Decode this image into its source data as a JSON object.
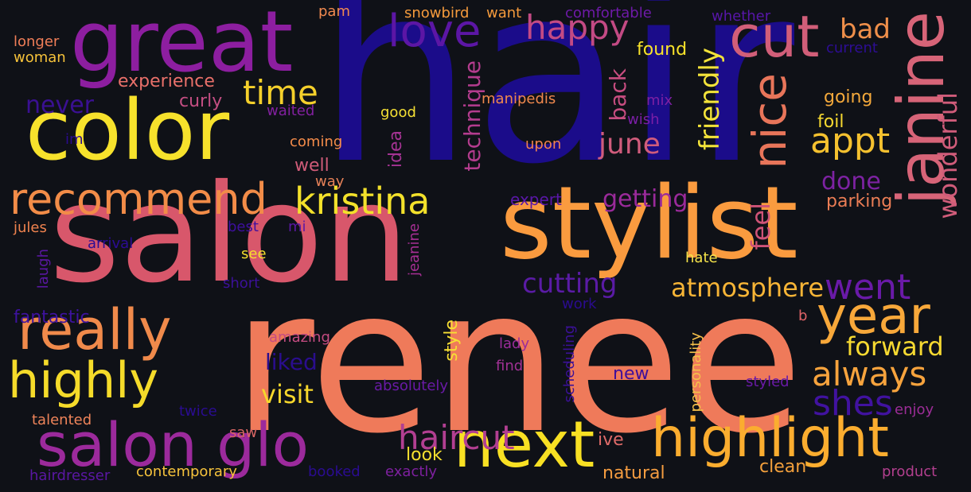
{
  "words": [
    {
      "text": "hair",
      "color": "#1b0c8a",
      "orientation": "horizontal"
    },
    {
      "text": "renee",
      "color": "#ef7a5a",
      "orientation": "horizontal"
    },
    {
      "text": "salon",
      "color": "#d8576b",
      "orientation": "horizontal"
    },
    {
      "text": "stylist",
      "color": "#fa9b3f",
      "orientation": "horizontal"
    },
    {
      "text": "great",
      "color": "#8d1ea0",
      "orientation": "horizontal"
    },
    {
      "text": "color",
      "color": "#f7e22c",
      "orientation": "horizontal"
    },
    {
      "text": "next",
      "color": "#f8e023",
      "orientation": "horizontal"
    },
    {
      "text": "salon glo",
      "color": "#9c2a9c",
      "orientation": "horizontal"
    },
    {
      "text": "highlight",
      "color": "#fbad2f",
      "orientation": "horizontal"
    },
    {
      "text": "really",
      "color": "#f08a4b",
      "orientation": "horizontal"
    },
    {
      "text": "recommend",
      "color": "#f28c48",
      "orientation": "horizontal"
    },
    {
      "text": "highly",
      "color": "#f5db2a",
      "orientation": "horizontal"
    },
    {
      "text": "cut",
      "color": "#d15e79",
      "orientation": "horizontal"
    },
    {
      "text": "janine",
      "color": "#d76478",
      "orientation": "vertical"
    },
    {
      "text": "year",
      "color": "#f8a83a",
      "orientation": "horizontal"
    },
    {
      "text": "kristina",
      "color": "#f3e12b",
      "orientation": "horizontal"
    },
    {
      "text": "love",
      "color": "#5c16a5",
      "orientation": "horizontal"
    },
    {
      "text": "nice",
      "color": "#e8755a",
      "orientation": "vertical"
    },
    {
      "text": "haircut",
      "color": "#b23f92",
      "orientation": "horizontal"
    },
    {
      "text": "always",
      "color": "#f7a33d",
      "orientation": "horizontal"
    },
    {
      "text": "appt",
      "color": "#f5c12f",
      "orientation": "horizontal"
    },
    {
      "text": "happy",
      "color": "#c34a84",
      "orientation": "horizontal"
    },
    {
      "text": "time",
      "color": "#f5d02b",
      "orientation": "horizontal"
    },
    {
      "text": "went",
      "color": "#6a1aa8",
      "orientation": "horizontal"
    },
    {
      "text": "shes",
      "color": "#4112a0",
      "orientation": "horizontal"
    },
    {
      "text": "june",
      "color": "#d05c7c",
      "orientation": "horizontal"
    },
    {
      "text": "atmosphere",
      "color": "#f6b436",
      "orientation": "horizontal"
    },
    {
      "text": "cutting",
      "color": "#5a1ba5",
      "orientation": "horizontal"
    },
    {
      "text": "wonderful",
      "color": "#d05c7a",
      "orientation": "vertical"
    },
    {
      "text": "bad",
      "color": "#ef8f4a",
      "orientation": "horizontal"
    },
    {
      "text": "forward",
      "color": "#f6d931",
      "orientation": "horizontal"
    },
    {
      "text": "visit",
      "color": "#f7d72c",
      "orientation": "horizontal"
    },
    {
      "text": "friendly",
      "color": "#f3e33a",
      "orientation": "vertical"
    },
    {
      "text": "feel",
      "color": "#cf5377",
      "orientation": "vertical"
    },
    {
      "text": "getting",
      "color": "#9a2a9a",
      "orientation": "horizontal"
    },
    {
      "text": "done",
      "color": "#7d22a2",
      "orientation": "horizontal"
    },
    {
      "text": "never",
      "color": "#3a1092",
      "orientation": "horizontal"
    },
    {
      "text": "back",
      "color": "#c74d80",
      "orientation": "vertical"
    },
    {
      "text": "technique",
      "color": "#b43c8e",
      "orientation": "vertical"
    },
    {
      "text": "liked",
      "color": "#2a0d8e",
      "orientation": "horizontal"
    },
    {
      "text": "curly",
      "color": "#c44e82",
      "orientation": "horizontal"
    },
    {
      "text": "experience",
      "color": "#e9706a",
      "orientation": "horizontal"
    },
    {
      "text": "found",
      "color": "#f8e22a",
      "orientation": "horizontal"
    },
    {
      "text": "going",
      "color": "#f4a93b",
      "orientation": "horizontal"
    },
    {
      "text": "foil",
      "color": "#f5d830",
      "orientation": "horizontal"
    },
    {
      "text": "parking",
      "color": "#eb7d55",
      "orientation": "horizontal"
    },
    {
      "text": "well",
      "color": "#cf5b78",
      "orientation": "horizontal"
    },
    {
      "text": "fantastic",
      "color": "#3e12a0",
      "orientation": "horizontal"
    },
    {
      "text": "style",
      "color": "#f7df33",
      "orientation": "vertical"
    },
    {
      "text": "look",
      "color": "#f5e02f",
      "orientation": "horizontal"
    },
    {
      "text": "clean",
      "color": "#f3a03c",
      "orientation": "horizontal"
    },
    {
      "text": "natural",
      "color": "#f49c40",
      "orientation": "horizontal"
    },
    {
      "text": "expert",
      "color": "#5a17a8",
      "orientation": "horizontal"
    },
    {
      "text": "new",
      "color": "#3e0f9b",
      "orientation": "horizontal"
    },
    {
      "text": "ive",
      "color": "#de6a68",
      "orientation": "horizontal"
    },
    {
      "text": "idea",
      "color": "#a43393",
      "orientation": "vertical"
    },
    {
      "text": "good",
      "color": "#f5e034",
      "orientation": "horizontal"
    },
    {
      "text": "waited",
      "color": "#82209f",
      "orientation": "horizontal"
    },
    {
      "text": "pam",
      "color": "#f18a50",
      "orientation": "horizontal"
    },
    {
      "text": "snowbird",
      "color": "#f49a3c",
      "orientation": "horizontal"
    },
    {
      "text": "want",
      "color": "#f49a3c",
      "orientation": "horizontal"
    },
    {
      "text": "comfortable",
      "color": "#6e1aa8",
      "orientation": "horizontal"
    },
    {
      "text": "whether",
      "color": "#5716a8",
      "orientation": "horizontal"
    },
    {
      "text": "current",
      "color": "#2d0d95",
      "orientation": "horizontal"
    },
    {
      "text": "longer",
      "color": "#f07e58",
      "orientation": "horizontal"
    },
    {
      "text": "woman",
      "color": "#f6c23a",
      "orientation": "horizontal"
    },
    {
      "text": "im",
      "color": "#2a0b8f",
      "orientation": "horizontal"
    },
    {
      "text": "coming",
      "color": "#f58c4a",
      "orientation": "horizontal"
    },
    {
      "text": "way",
      "color": "#e68158",
      "orientation": "horizontal"
    },
    {
      "text": "manipedis",
      "color": "#f0884d",
      "orientation": "horizontal"
    },
    {
      "text": "mix",
      "color": "#7d20a2",
      "orientation": "horizontal"
    },
    {
      "text": "wish",
      "color": "#7b1ea6",
      "orientation": "horizontal"
    },
    {
      "text": "upon",
      "color": "#f0834f",
      "orientation": "horizontal"
    },
    {
      "text": "jules",
      "color": "#f0834f",
      "orientation": "horizontal"
    },
    {
      "text": "best",
      "color": "#3e0f9f",
      "orientation": "horizontal"
    },
    {
      "text": "mi",
      "color": "#5c18a5",
      "orientation": "horizontal"
    },
    {
      "text": "arrival",
      "color": "#2c0c95",
      "orientation": "horizontal"
    },
    {
      "text": "laugh",
      "color": "#5a17a2",
      "orientation": "vertical"
    },
    {
      "text": "see",
      "color": "#f5df2e",
      "orientation": "horizontal"
    },
    {
      "text": "short",
      "color": "#3b1198",
      "orientation": "horizontal"
    },
    {
      "text": "jeanine",
      "color": "#a82f95",
      "orientation": "vertical"
    },
    {
      "text": "hate",
      "color": "#f5e34a",
      "orientation": "horizontal"
    },
    {
      "text": "work",
      "color": "#2a0b8f",
      "orientation": "horizontal"
    },
    {
      "text": "b",
      "color": "#e06468",
      "orientation": "horizontal"
    },
    {
      "text": "personality",
      "color": "#f5c04a",
      "orientation": "vertical"
    },
    {
      "text": "amazing",
      "color": "#c54c82",
      "orientation": "horizontal"
    },
    {
      "text": "scheduling",
      "color": "#3b1198",
      "orientation": "vertical"
    },
    {
      "text": "lady",
      "color": "#9b2c9a",
      "orientation": "horizontal"
    },
    {
      "text": "find",
      "color": "#a13195",
      "orientation": "horizontal"
    },
    {
      "text": "absolutely",
      "color": "#6a1aa6",
      "orientation": "horizontal"
    },
    {
      "text": "styled",
      "color": "#6a1aa6",
      "orientation": "horizontal"
    },
    {
      "text": "enjoy",
      "color": "#9c2d97",
      "orientation": "horizontal"
    },
    {
      "text": "talented",
      "color": "#ef845a",
      "orientation": "horizontal"
    },
    {
      "text": "twice",
      "color": "#2a0c91",
      "orientation": "horizontal"
    },
    {
      "text": "saw",
      "color": "#d96664",
      "orientation": "horizontal"
    },
    {
      "text": "hairdresser",
      "color": "#5a17a3",
      "orientation": "horizontal"
    },
    {
      "text": "contemporary",
      "color": "#f6c33c",
      "orientation": "horizontal"
    },
    {
      "text": "booked",
      "color": "#2a0c91",
      "orientation": "horizontal"
    },
    {
      "text": "exactly",
      "color": "#7e209f",
      "orientation": "horizontal"
    },
    {
      "text": "product",
      "color": "#b23f8e",
      "orientation": "horizontal"
    }
  ]
}
